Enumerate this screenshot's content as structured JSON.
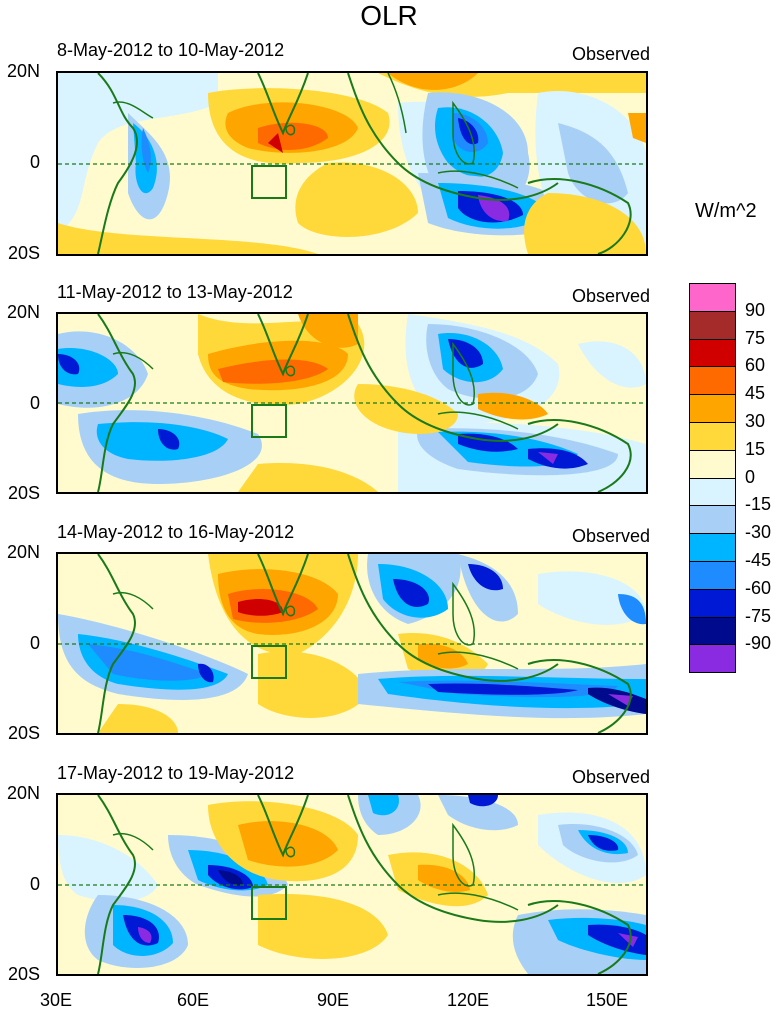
{
  "title": "OLR",
  "units": "W/m^2",
  "panels": [
    {
      "date": "8-May-2012 to 10-May-2012",
      "tag": "Observed"
    },
    {
      "date": "11-May-2012 to 13-May-2012",
      "tag": "Observed"
    },
    {
      "date": "14-May-2012 to 16-May-2012",
      "tag": "Observed"
    },
    {
      "date": "17-May-2012 to 19-May-2012",
      "tag": "Observed"
    }
  ],
  "lat_labels": [
    "20N",
    "0",
    "20S"
  ],
  "lon_labels": [
    "30E",
    "60E",
    "90E",
    "120E",
    "150E"
  ],
  "colorbar": {
    "labels": [
      "90",
      "75",
      "60",
      "45",
      "30",
      "15",
      "0",
      "-15",
      "-30",
      "-45",
      "-60",
      "-75",
      "-90"
    ],
    "colors": [
      "#ff66cc",
      "#a52a2a",
      "#d10000",
      "#ff6a00",
      "#ffa500",
      "#ffd83a",
      "#fffbce",
      "#d9f3ff",
      "#a8d0f7",
      "#00b5ff",
      "#1e8cff",
      "#0019d4",
      "#000a8c",
      "#8a2be2"
    ]
  },
  "palette": {
    "coast": "#1a7a1a",
    "equator": "#1a7a1a"
  }
}
